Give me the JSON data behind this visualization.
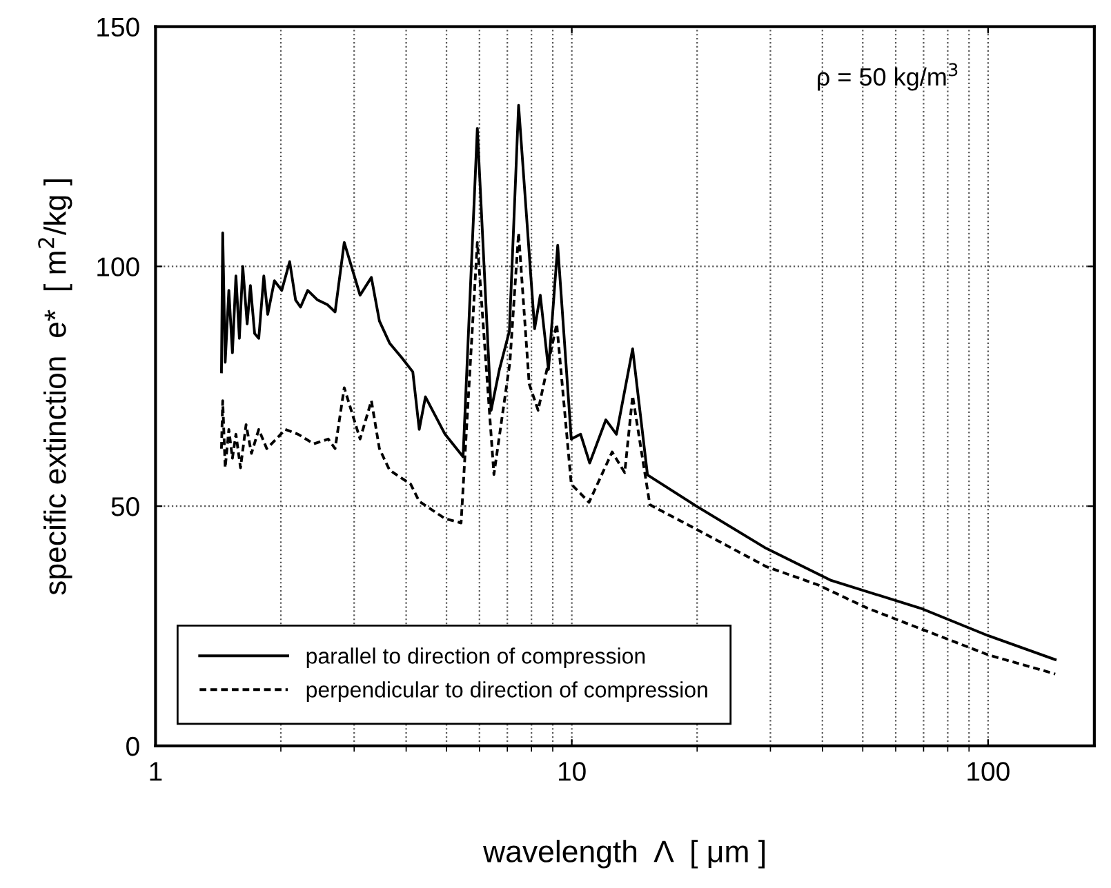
{
  "chart_data": {
    "type": "line",
    "xlabel": "wavelength  Λ  [ μm ]",
    "ylabel": "specific extinction  e*  [ m$^{2}$/kg ]",
    "log": "x",
    "xlim": [
      1,
      180
    ],
    "ylim": [
      0,
      150
    ],
    "xticks": [
      1,
      10,
      100
    ],
    "yticks": [
      0,
      50,
      100,
      150
    ],
    "grid": true,
    "legend": "bottom left",
    "annotations": [
      "ρ = 50 kg/m$^{3}$"
    ],
    "series": [
      {
        "name": "parallel to direction of compression",
        "color": "#000000",
        "line_style": "solid",
        "x": [
          1.44,
          1.45,
          1.47,
          1.5,
          1.53,
          1.56,
          1.59,
          1.62,
          1.66,
          1.69,
          1.73,
          1.77,
          1.82,
          1.86,
          1.93,
          2.01,
          2.1,
          2.17,
          2.23,
          2.32,
          2.45,
          2.59,
          2.7,
          2.84,
          3.1,
          3.3,
          3.45,
          3.65,
          3.9,
          4.15,
          4.3,
          4.45,
          4.96,
          5.48,
          5.93,
          6.4,
          6.7,
          7.08,
          7.45,
          8.14,
          8.4,
          8.79,
          9.25,
          9.97,
          10.5,
          11.04,
          12.07,
          12.8,
          14.0,
          15.2,
          20.1,
          29.3,
          42,
          68.9,
          100,
          145
        ],
        "values": [
          78,
          107,
          80,
          95,
          82,
          98,
          85,
          100,
          88,
          96,
          86,
          85,
          98,
          90,
          97,
          95,
          101,
          93,
          91.5,
          95,
          93,
          92,
          90.5,
          105,
          94,
          97.7,
          88.6,
          84,
          81,
          78,
          66,
          72.8,
          65,
          60.3,
          128.8,
          70,
          78.5,
          86.5,
          133.6,
          87,
          94,
          78.5,
          104.4,
          64,
          65,
          59,
          68,
          65,
          82.8,
          56.5,
          49.8,
          41.2,
          34.5,
          28.7,
          23,
          18
        ]
      },
      {
        "name": "perpendicular to direction of compression",
        "color": "#000000",
        "line_style": "dashed",
        "x": [
          1.44,
          1.45,
          1.47,
          1.5,
          1.53,
          1.56,
          1.6,
          1.65,
          1.7,
          1.77,
          1.85,
          1.95,
          2.05,
          2.2,
          2.4,
          2.6,
          2.7,
          2.84,
          3.1,
          3.3,
          3.45,
          3.65,
          4.1,
          4.3,
          4.96,
          5.42,
          5.93,
          6.5,
          7.1,
          7.45,
          7.9,
          8.3,
          9.2,
          9.97,
          11.0,
          12.5,
          13.4,
          14.0,
          15.4,
          20.1,
          29.3,
          39,
          51.4,
          100,
          145
        ],
        "values": [
          62,
          72,
          58,
          66,
          60,
          65,
          58,
          67,
          61,
          66,
          62,
          64,
          66,
          65,
          63,
          64,
          62,
          74.7,
          64,
          72,
          62,
          57.5,
          54.6,
          51,
          47.4,
          46.5,
          105,
          56.6,
          80,
          107,
          75.5,
          70,
          88,
          54.6,
          50.8,
          61.3,
          57,
          73,
          50.3,
          45,
          37.4,
          33.6,
          28.7,
          19,
          15
        ]
      }
    ]
  }
}
